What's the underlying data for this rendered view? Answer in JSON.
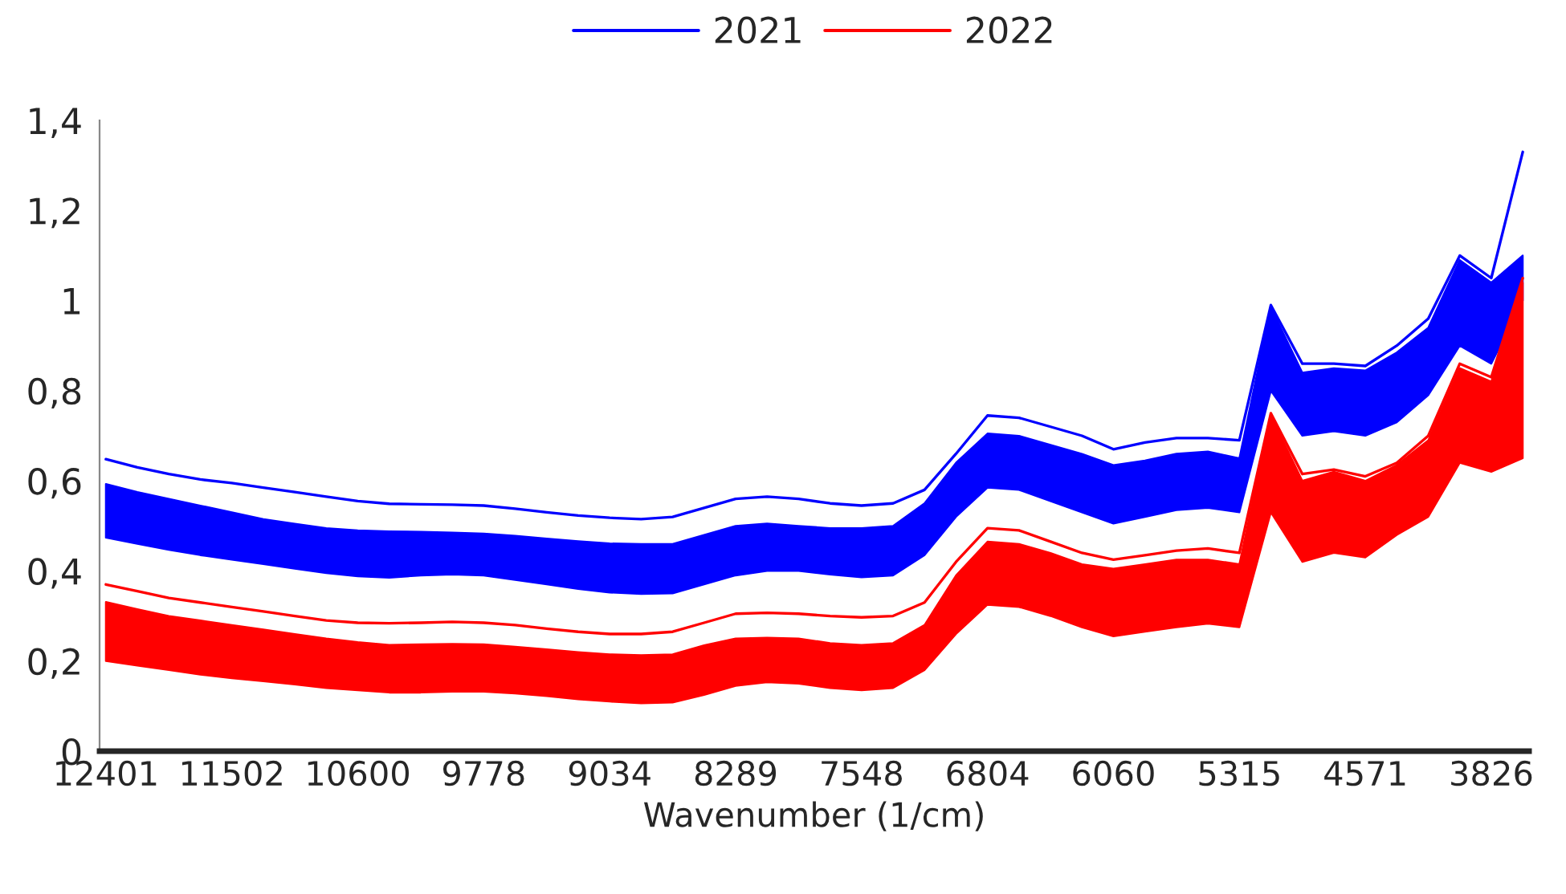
{
  "chart_data": {
    "type": "line",
    "xlabel": "Wavenumber (1/cm)",
    "categories": [
      "12401",
      null,
      null,
      null,
      "11502",
      null,
      null,
      null,
      "10600",
      null,
      null,
      null,
      "9778",
      null,
      null,
      null,
      "9034",
      null,
      null,
      null,
      "8289",
      null,
      null,
      null,
      "7548",
      null,
      null,
      null,
      "6804",
      null,
      null,
      null,
      "6060",
      null,
      null,
      null,
      "5315",
      null,
      null,
      null,
      "4571",
      null,
      null,
      null,
      "3826",
      null
    ],
    "series": [
      {
        "name": "2021",
        "color": "#0000ff",
        "values": [
          0.648,
          0.63,
          0.615,
          0.603,
          0.595,
          0.585,
          0.575,
          0.565,
          0.555,
          0.549,
          0.548,
          0.547,
          0.545,
          0.538,
          0.53,
          0.523,
          0.518,
          0.515,
          0.52,
          0.54,
          0.56,
          0.565,
          0.56,
          0.55,
          0.545,
          0.55,
          0.58,
          0.66,
          0.745,
          0.74,
          0.72,
          0.7,
          0.67,
          0.685,
          0.695,
          0.695,
          0.69,
          0.99,
          0.86,
          0.86,
          0.855,
          0.9,
          0.96,
          1.1,
          1.05,
          1.33
        ],
        "upper": [
          0.593,
          0.575,
          0.56,
          0.545,
          0.53,
          0.515,
          0.505,
          0.495,
          0.49,
          0.488,
          0.487,
          0.485,
          0.483,
          0.478,
          0.472,
          0.466,
          0.461,
          0.46,
          0.46,
          0.48,
          0.5,
          0.505,
          0.5,
          0.495,
          0.495,
          0.5,
          0.55,
          0.64,
          0.705,
          0.7,
          0.68,
          0.66,
          0.635,
          0.645,
          0.66,
          0.665,
          0.65,
          0.985,
          0.84,
          0.85,
          0.845,
          0.885,
          0.94,
          1.09,
          1.04,
          1.1
        ],
        "lower": [
          0.474,
          0.46,
          0.447,
          0.435,
          0.425,
          0.415,
          0.405,
          0.395,
          0.388,
          0.385,
          0.39,
          0.392,
          0.39,
          0.38,
          0.37,
          0.36,
          0.352,
          0.349,
          0.35,
          0.37,
          0.39,
          0.4,
          0.4,
          0.392,
          0.386,
          0.39,
          0.435,
          0.52,
          0.585,
          0.58,
          0.555,
          0.53,
          0.505,
          0.52,
          0.535,
          0.54,
          0.53,
          0.8,
          0.7,
          0.71,
          0.7,
          0.73,
          0.79,
          0.9,
          0.86,
          1.0
        ]
      },
      {
        "name": "2022",
        "color": "#ff0000",
        "values": [
          0.37,
          0.355,
          0.34,
          0.33,
          0.32,
          0.31,
          0.3,
          0.29,
          0.285,
          0.284,
          0.285,
          0.287,
          0.285,
          0.28,
          0.272,
          0.265,
          0.26,
          0.26,
          0.265,
          0.285,
          0.305,
          0.307,
          0.305,
          0.3,
          0.297,
          0.3,
          0.33,
          0.42,
          0.495,
          0.49,
          0.465,
          0.44,
          0.425,
          0.435,
          0.445,
          0.45,
          0.44,
          0.75,
          0.615,
          0.625,
          0.61,
          0.64,
          0.7,
          0.86,
          0.83,
          1.05
        ],
        "upper": [
          0.331,
          0.315,
          0.3,
          0.29,
          0.28,
          0.27,
          0.26,
          0.25,
          0.242,
          0.236,
          0.237,
          0.238,
          0.237,
          0.232,
          0.226,
          0.22,
          0.215,
          0.213,
          0.215,
          0.235,
          0.25,
          0.252,
          0.25,
          0.24,
          0.236,
          0.24,
          0.28,
          0.39,
          0.465,
          0.46,
          0.44,
          0.415,
          0.405,
          0.415,
          0.425,
          0.425,
          0.415,
          0.745,
          0.6,
          0.62,
          0.6,
          0.635,
          0.69,
          0.85,
          0.82,
          1.04
        ],
        "lower": [
          0.2,
          0.19,
          0.18,
          0.17,
          0.162,
          0.155,
          0.148,
          0.14,
          0.135,
          0.13,
          0.13,
          0.132,
          0.132,
          0.128,
          0.122,
          0.115,
          0.11,
          0.106,
          0.108,
          0.125,
          0.145,
          0.153,
          0.15,
          0.14,
          0.135,
          0.14,
          0.18,
          0.26,
          0.325,
          0.32,
          0.3,
          0.275,
          0.255,
          0.265,
          0.275,
          0.283,
          0.275,
          0.53,
          0.42,
          0.44,
          0.43,
          0.48,
          0.52,
          0.64,
          0.62,
          0.65
        ]
      }
    ],
    "ylim": [
      0,
      1.4
    ],
    "yticks": [
      0,
      {
        "value": 0.2,
        "label": "0,2"
      },
      {
        "value": 0.4,
        "label": "0,4"
      },
      {
        "value": 0.6,
        "label": "0,6"
      },
      {
        "value": 0.8,
        "label": "0,8"
      },
      1,
      {
        "value": 1.2,
        "label": "1,2"
      },
      {
        "value": 1.4,
        "label": "1,4"
      }
    ],
    "legend": "top",
    "grid": false
  }
}
